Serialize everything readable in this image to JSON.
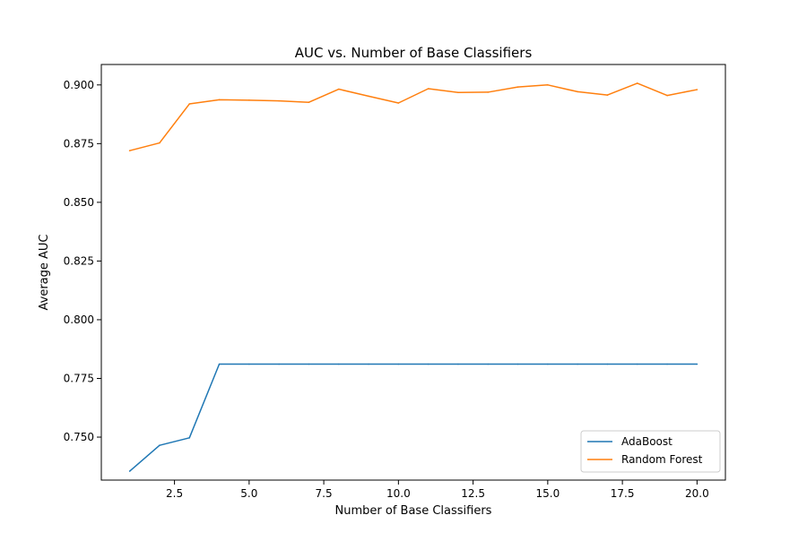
{
  "chart_data": {
    "type": "line",
    "title": "AUC vs. Number of Base Classifiers",
    "xlabel": "Number of Base Classifiers",
    "ylabel": "Average AUC",
    "xlim": [
      0.05,
      20.95
    ],
    "ylim": [
      0.7317,
      0.9087
    ],
    "xticks": [
      2.5,
      5.0,
      7.5,
      10.0,
      12.5,
      15.0,
      17.5,
      20.0
    ],
    "xtick_labels": [
      "2.5",
      "5.0",
      "7.5",
      "10.0",
      "12.5",
      "15.0",
      "17.5",
      "20.0"
    ],
    "yticks": [
      0.75,
      0.775,
      0.8,
      0.825,
      0.85,
      0.875,
      0.9
    ],
    "ytick_labels": [
      "0.750",
      "0.775",
      "0.800",
      "0.825",
      "0.850",
      "0.875",
      "0.900"
    ],
    "grid": false,
    "legend_position": "lower-right",
    "x": [
      1,
      2,
      3,
      4,
      5,
      6,
      7,
      8,
      9,
      10,
      11,
      12,
      13,
      14,
      15,
      16,
      17,
      18,
      19,
      20
    ],
    "series": [
      {
        "name": "AdaBoost",
        "color": "#1f77b4",
        "values": [
          0.7355,
          0.7465,
          0.7497,
          0.7811,
          0.7811,
          0.7811,
          0.7811,
          0.7811,
          0.7811,
          0.7811,
          0.7811,
          0.7811,
          0.7811,
          0.7811,
          0.7811,
          0.7811,
          0.7811,
          0.7811,
          0.7811,
          0.7811
        ]
      },
      {
        "name": "Random Forest",
        "color": "#ff7f0e",
        "values": [
          0.872,
          0.8753,
          0.8919,
          0.8937,
          0.8935,
          0.8932,
          0.8926,
          0.8982,
          0.8952,
          0.8923,
          0.8984,
          0.8968,
          0.8969,
          0.8991,
          0.9,
          0.8971,
          0.8957,
          0.9007,
          0.8955,
          0.898
        ]
      }
    ]
  }
}
